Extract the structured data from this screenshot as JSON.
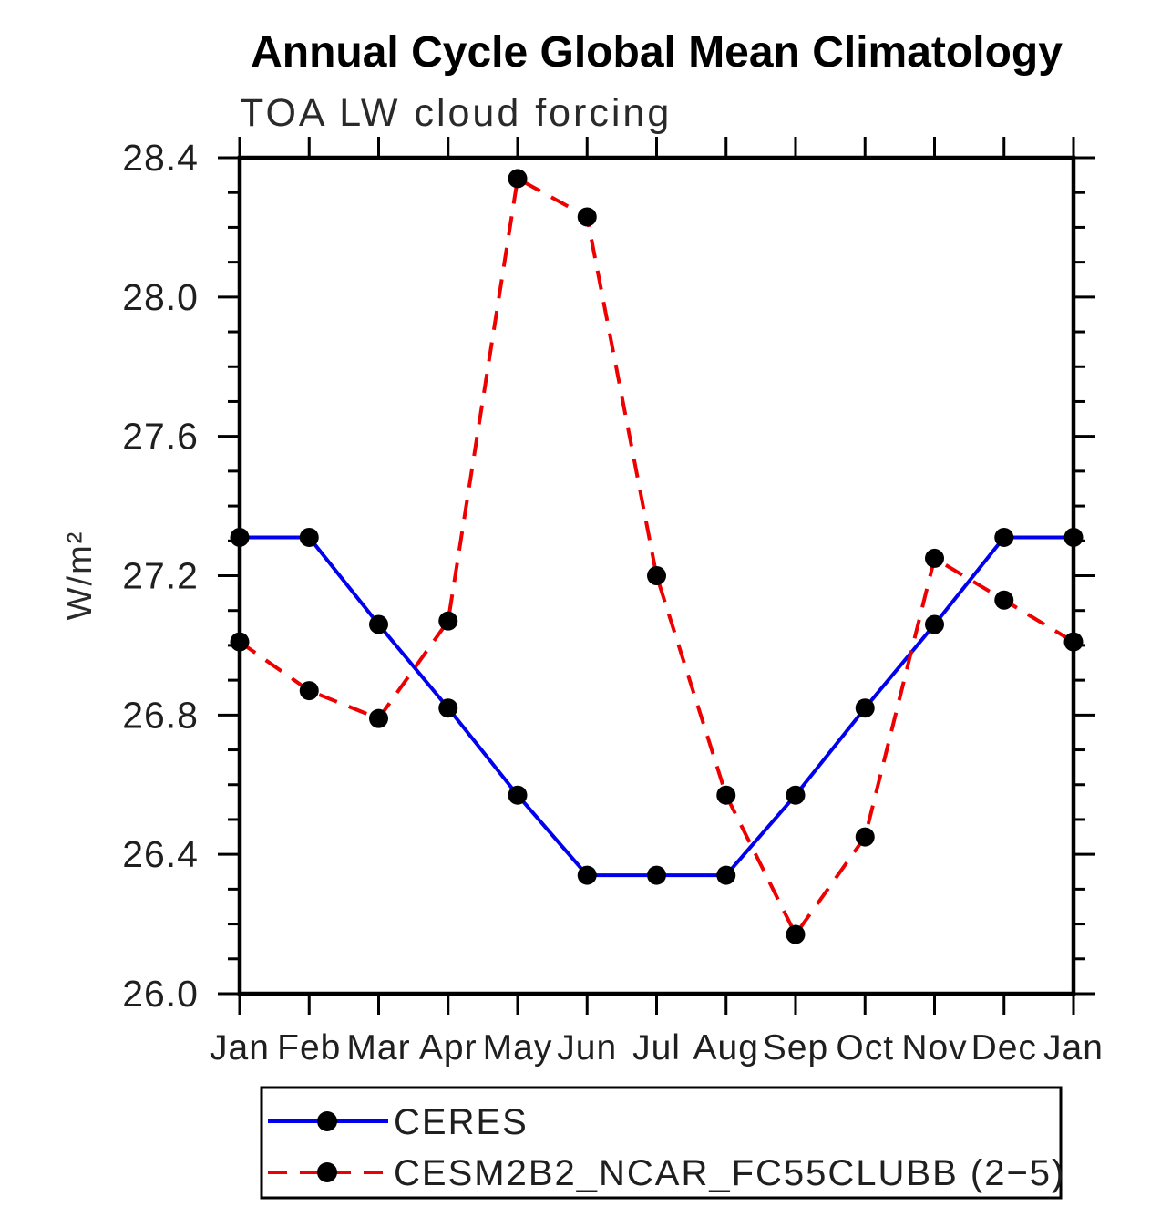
{
  "chart_data": {
    "type": "line",
    "title": "Annual Cycle Global Mean Climatology",
    "subtitle": "TOA LW cloud forcing",
    "ylabel": "W/m²",
    "xlabel": "",
    "categories": [
      "Jan",
      "Feb",
      "Mar",
      "Apr",
      "May",
      "Jun",
      "Jul",
      "Aug",
      "Sep",
      "Oct",
      "Nov",
      "Dec",
      "Jan"
    ],
    "series": [
      {
        "name": "CERES",
        "line_style": "solid",
        "line_color": "#0000ee",
        "marker": "circle",
        "marker_color": "#000000",
        "values": [
          27.31,
          27.31,
          27.06,
          26.82,
          26.57,
          26.34,
          26.34,
          26.34,
          26.57,
          26.82,
          27.06,
          27.31,
          27.31
        ]
      },
      {
        "name": "CESM2B2_NCAR_FC55CLUBB (2−5)",
        "line_style": "dashed",
        "line_color": "#ee0000",
        "marker": "circle",
        "marker_color": "#000000",
        "values": [
          27.01,
          26.87,
          26.79,
          27.07,
          28.34,
          28.23,
          27.2,
          26.57,
          26.17,
          26.45,
          27.25,
          27.13,
          27.01
        ]
      }
    ],
    "ylim": [
      26.0,
      28.4
    ],
    "ytick_major_step": 0.4,
    "ytick_minor_step": 0.1,
    "ytick_labels": [
      "26.0",
      "26.4",
      "26.8",
      "27.2",
      "27.6",
      "28.0",
      "28.4"
    ],
    "grid": false,
    "legend_position": "bottom"
  }
}
